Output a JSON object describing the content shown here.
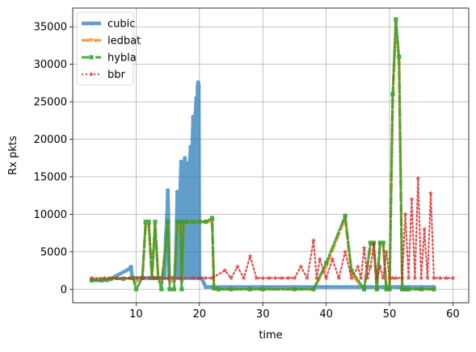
{
  "chart_data": {
    "type": "line",
    "xlabel": "time",
    "ylabel": "Rx pkts",
    "xlim": [
      0,
      62.5
    ],
    "ylim": [
      -1800,
      37500
    ],
    "xticks": [
      10,
      20,
      30,
      40,
      50,
      60
    ],
    "yticks": [
      0,
      5000,
      10000,
      15000,
      20000,
      25000,
      30000,
      35000
    ],
    "grid": true,
    "legend": "top-left",
    "series": [
      {
        "name": "cubic",
        "color": "#1f77b4",
        "style": "solid-thick",
        "marker": "circle",
        "x": [
          3,
          5.5,
          5.7,
          6,
          8.9,
          9.2,
          9.4,
          9.6,
          10.2,
          11,
          12,
          13,
          14,
          14.5,
          14.7,
          14.9,
          15,
          15.1,
          15.2,
          15.4,
          15.6,
          15.8,
          16,
          16.2,
          16.5,
          16.7,
          17,
          17.1,
          17.4,
          17.5,
          17.7,
          17.8,
          18,
          18.1,
          18.3,
          18.4,
          18.6,
          18.7,
          18.9,
          19,
          19.2,
          19.3,
          19.5,
          19.6,
          19.7,
          19.8,
          19.9,
          20,
          20.1,
          20.2,
          20.3,
          21,
          22,
          25,
          30,
          35,
          40,
          45,
          47,
          48,
          49,
          50,
          51,
          51.5,
          51.8,
          52,
          52.2,
          53,
          55,
          57
        ],
        "y": [
          1200,
          1200,
          1400,
          1400,
          2700,
          3000,
          1500,
          1500,
          1500,
          1500,
          1500,
          1500,
          1500,
          1500,
          7000,
          10000,
          13200,
          10000,
          1400,
          1500,
          1500,
          1500,
          1500,
          1500,
          13000,
          1500,
          14000,
          17000,
          1500,
          16500,
          17500,
          1500,
          16500,
          16800,
          1500,
          16000,
          19000,
          1500,
          20000,
          23000,
          1500,
          22500,
          25500,
          1500,
          27000,
          27600,
          27000,
          1500,
          1500,
          1500,
          1500,
          300,
          300,
          300,
          300,
          300,
          300,
          300,
          300,
          300,
          300,
          300,
          300,
          300,
          300,
          300,
          300,
          300,
          300,
          300
        ]
      },
      {
        "name": "ledbat",
        "color": "#ff7f0e",
        "style": "dashed-thick",
        "marker": "triangle-down",
        "x": [
          3,
          4.5,
          6,
          8,
          9.5,
          10,
          11,
          11.5,
          12,
          12.5,
          13,
          13.5,
          14,
          15,
          15.3,
          16,
          16.5,
          17,
          17.2,
          17.5,
          18,
          19,
          20,
          21,
          22,
          22.3,
          23,
          25,
          28,
          30,
          35,
          38,
          40,
          43,
          44,
          46,
          47,
          47.5,
          48,
          48.5,
          49,
          49.5,
          50,
          50.5,
          51,
          51.5,
          52,
          52.3,
          52.6,
          53,
          55,
          57
        ],
        "y": [
          1200,
          1200,
          1400,
          1400,
          1500,
          1000,
          1500,
          8500,
          8500,
          1500,
          8500,
          1500,
          1000,
          8500,
          1000,
          1000,
          8500,
          8500,
          1000,
          8500,
          9000,
          9000,
          9000,
          9000,
          9000,
          200,
          0,
          0,
          0,
          0,
          0,
          0,
          3000,
          9500,
          2000,
          0,
          6000,
          6000,
          0,
          6000,
          6000,
          0,
          0,
          25000,
          35500,
          30000,
          0,
          0,
          0,
          0,
          0,
          0
        ]
      },
      {
        "name": "hybla",
        "color": "#2ca02c",
        "style": "dashdot-thick",
        "marker": "square",
        "x": [
          3,
          4.5,
          6,
          8,
          9.5,
          10,
          11,
          11.5,
          12,
          12.5,
          13,
          13.5,
          14,
          15,
          15.3,
          16,
          16.5,
          17,
          17.2,
          17.5,
          18,
          19,
          20,
          21,
          22,
          22.3,
          23,
          25,
          28,
          30,
          35,
          38,
          40,
          43,
          44,
          46,
          47,
          47.5,
          48,
          48.5,
          49,
          49.5,
          50,
          50.5,
          51,
          51.5,
          52,
          52.3,
          52.6,
          53,
          55,
          57
        ],
        "y": [
          1200,
          1200,
          1400,
          1400,
          1500,
          0,
          1500,
          9000,
          9000,
          1500,
          9000,
          1500,
          0,
          9000,
          0,
          0,
          9000,
          9000,
          0,
          9000,
          9000,
          9000,
          9000,
          9000,
          9500,
          100,
          0,
          0,
          0,
          0,
          0,
          0,
          3500,
          9800,
          2500,
          0,
          6200,
          6200,
          0,
          6200,
          6200,
          0,
          0,
          26000,
          36000,
          31000,
          0,
          0,
          0,
          0,
          0,
          0
        ]
      },
      {
        "name": "bbr",
        "color": "#d62728",
        "style": "dotted",
        "marker": "star",
        "x": [
          3,
          5,
          7,
          9,
          11,
          13,
          15,
          17,
          19,
          20,
          21,
          22,
          24,
          25,
          26,
          27,
          28,
          29,
          30,
          31,
          32,
          33,
          34,
          35,
          36,
          37,
          38,
          38.5,
          39,
          40,
          41,
          42,
          43,
          44,
          45,
          45.5,
          46,
          46.5,
          47,
          47.5,
          48,
          48.5,
          49,
          49.5,
          50,
          50.5,
          51,
          52,
          52.5,
          53,
          53.5,
          54,
          54.5,
          55,
          55.5,
          56,
          56.5,
          57,
          58,
          59,
          60
        ],
        "y": [
          1500,
          1500,
          1500,
          1500,
          1500,
          1500,
          1500,
          1500,
          1500,
          1500,
          1500,
          1500,
          2500,
          1500,
          3000,
          1500,
          4400,
          1500,
          1500,
          1500,
          1500,
          1500,
          1500,
          1500,
          3000,
          1500,
          6500,
          1500,
          4000,
          1500,
          4000,
          1500,
          5000,
          1500,
          3000,
          1500,
          5500,
          1500,
          3000,
          6000,
          1500,
          3000,
          1500,
          5000,
          1500,
          1500,
          1500,
          1500,
          10000,
          1500,
          12000,
          1500,
          14800,
          1500,
          8000,
          1500,
          12800,
          1500,
          1500,
          1500,
          1500
        ]
      }
    ]
  }
}
